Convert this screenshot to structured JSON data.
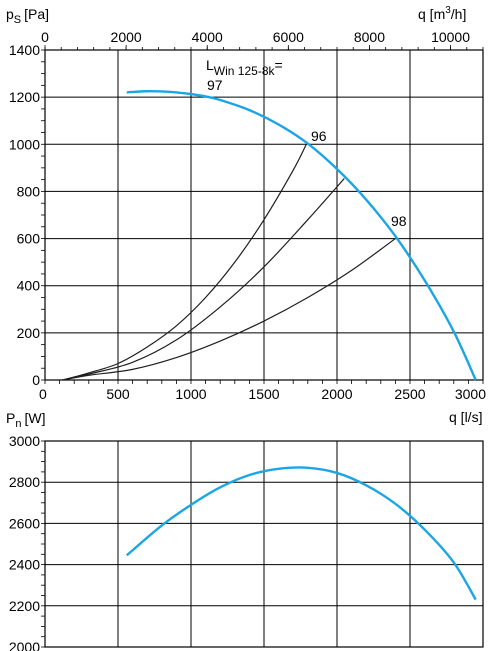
{
  "chart_data": [
    {
      "type": "line",
      "ylabel": "p",
      "ylabel_sub": "S",
      "ylabel_unit": "[Pa]",
      "xlabel": "q [l/s]",
      "top_axis_label": "q [m",
      "top_axis_sup": "3",
      "top_axis_tail": "/h]",
      "xlim": [
        0,
        3000
      ],
      "ylim": [
        0,
        1400
      ],
      "x_ticks": [
        0,
        500,
        1000,
        1500,
        2000,
        2500,
        3000
      ],
      "y_ticks": [
        0,
        200,
        400,
        600,
        800,
        1000,
        1200,
        1400
      ],
      "top_x_ticks": [
        0,
        2000,
        4000,
        6000,
        8000,
        10000
      ],
      "grid": true,
      "annotation_main": "L",
      "annotation_sub": "Win 125-8k",
      "annotation_tail": "=",
      "labels": [
        "97",
        "96",
        "98"
      ],
      "series": [
        {
          "color": "#1aa6e4",
          "x": [
            560,
            600,
            700,
            800,
            900,
            1000,
            1100,
            1200,
            1400,
            1600,
            1800,
            2000,
            2200,
            2400,
            2600,
            2800,
            2950
          ],
          "y": [
            1220,
            1222,
            1225,
            1224,
            1220,
            1213,
            1203,
            1188,
            1145,
            1084,
            1003,
            895,
            765,
            610,
            423,
            205,
            0
          ]
        },
        {
          "color": "#1e1e1e",
          "x": [
            120,
            300,
            500,
            700,
            900,
            1100,
            1300,
            1500,
            1700,
            1790
          ],
          "y": [
            0,
            30,
            70,
            140,
            230,
            350,
            500,
            680,
            890,
            1000
          ]
        },
        {
          "color": "#1e1e1e",
          "x": [
            120,
            300,
            600,
            900,
            1200,
            1500,
            1800,
            2050
          ],
          "y": [
            0,
            25,
            75,
            170,
            310,
            480,
            680,
            855
          ]
        },
        {
          "color": "#1e1e1e",
          "x": [
            120,
            300,
            600,
            900,
            1200,
            1500,
            1800,
            2100,
            2400
          ],
          "y": [
            0,
            20,
            45,
            95,
            165,
            250,
            350,
            465,
            600
          ]
        }
      ]
    },
    {
      "type": "line",
      "ylabel": "P",
      "ylabel_sub": "n",
      "ylabel_unit": "[W]",
      "xlim": [
        0,
        3000
      ],
      "ylim": [
        2000,
        3000
      ],
      "y_ticks": [
        2000,
        2200,
        2400,
        2600,
        2800,
        3000
      ],
      "grid": true,
      "series": [
        {
          "color": "#1aa6e4",
          "x": [
            560,
            800,
            1000,
            1200,
            1400,
            1600,
            1800,
            2000,
            2200,
            2400,
            2600,
            2800,
            2950
          ],
          "y": [
            2445,
            2590,
            2690,
            2775,
            2835,
            2865,
            2870,
            2845,
            2785,
            2695,
            2570,
            2410,
            2230
          ]
        }
      ]
    }
  ]
}
